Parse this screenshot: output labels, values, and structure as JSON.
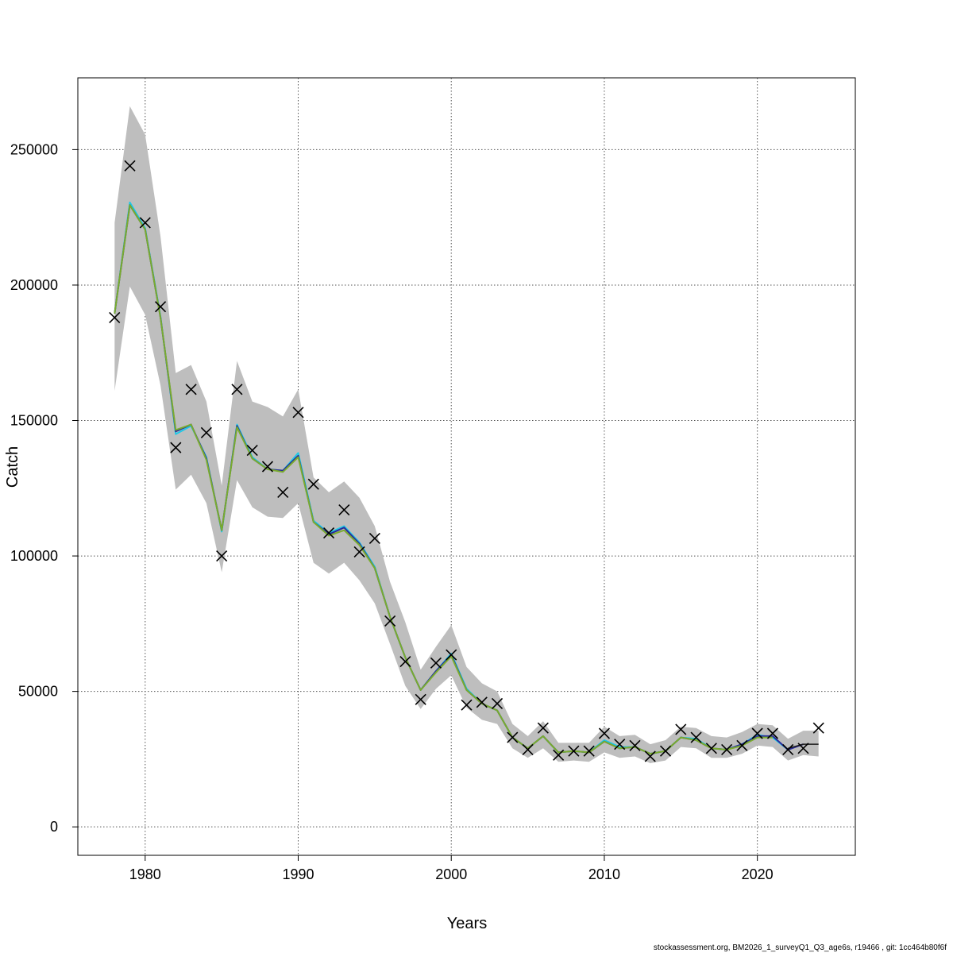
{
  "chart_data": {
    "type": "line",
    "title": "",
    "xlabel": "Years",
    "ylabel": "Catch",
    "xlim": [
      1975.6,
      2026.4
    ],
    "ylim": [
      -10500,
      276500
    ],
    "xticks": [
      1980,
      1990,
      2000,
      2010,
      2020
    ],
    "yticks": [
      0,
      50000,
      100000,
      150000,
      200000,
      250000
    ],
    "grid": true,
    "legend": "none",
    "footer": "stockassessment.org, BM2026_1_surveyQ1_Q3_age6s, r19466 , git: 1cc464b80f6f",
    "colors": {
      "band": "#bebebe",
      "fit_green": "#7aab2e",
      "fit_cyan": "#1ec8e6",
      "fit_blue": "#2a2a9a",
      "fit_dark": "#1a1a1a",
      "observed": "#000000",
      "grid": "#555555"
    },
    "series": [
      {
        "kind": "band",
        "x": [
          1978,
          1979,
          1980,
          1981,
          1982,
          1983,
          1984,
          1985,
          1986,
          1987,
          1988,
          1989,
          1990,
          1991,
          1992,
          1993,
          1994,
          1995,
          1996,
          1997,
          1998,
          1999,
          2000,
          2001,
          2002,
          2003,
          2004,
          2005,
          2006,
          2007,
          2008,
          2009,
          2010,
          2011,
          2012,
          2013,
          2014,
          2015,
          2016,
          2017,
          2018,
          2019,
          2020,
          2021,
          2022,
          2023,
          2024
        ],
        "lower": [
          161000,
          199500,
          189000,
          163000,
          124500,
          130000,
          119500,
          94000,
          128000,
          118000,
          114500,
          114000,
          119500,
          97500,
          93500,
          97500,
          91000,
          82500,
          67500,
          52000,
          43500,
          51000,
          56000,
          44000,
          39500,
          38000,
          29000,
          25500,
          29000,
          24000,
          24500,
          24000,
          27500,
          25500,
          26000,
          23500,
          24500,
          29500,
          29000,
          25500,
          25500,
          27000,
          30000,
          29500,
          24500,
          26500,
          26000
        ],
        "upper": [
          223000,
          266000,
          255500,
          218000,
          167500,
          170500,
          157000,
          126000,
          172000,
          157000,
          155000,
          151500,
          161500,
          129000,
          123500,
          127500,
          121500,
          111000,
          90500,
          75500,
          58000,
          66500,
          74500,
          59000,
          53000,
          50000,
          38000,
          33500,
          39000,
          31000,
          31000,
          31000,
          37000,
          33500,
          34000,
          30500,
          32000,
          37000,
          36500,
          33500,
          33000,
          35000,
          38000,
          37500,
          32500,
          35500,
          35500
        ]
      },
      {
        "kind": "line",
        "color_key": "fit_cyan",
        "x": [
          1978,
          1979,
          1980,
          1981,
          1982,
          1983,
          1984,
          1985,
          1986,
          1987,
          1988,
          1989,
          1990,
          1991,
          1992,
          1993,
          1994,
          1995,
          1996,
          1997,
          1998,
          1999,
          2000,
          2001,
          2002,
          2003,
          2004,
          2005,
          2006,
          2007,
          2008,
          2009,
          2010,
          2011,
          2012,
          2013,
          2014,
          2015,
          2016,
          2017,
          2018,
          2019,
          2020,
          2021,
          2022
        ],
        "y": [
          189500,
          230500,
          221000,
          188500,
          145000,
          148000,
          136500,
          109000,
          148500,
          136500,
          132000,
          131500,
          138000,
          113000,
          108500,
          111000,
          105000,
          96000,
          77500,
          62500,
          50500,
          57500,
          64000,
          51000,
          45500,
          43000,
          33000,
          29000,
          33500,
          27500,
          28000,
          27500,
          32000,
          29500,
          29500,
          27000,
          28000,
          33000,
          32500,
          29000,
          28500,
          30500,
          34000,
          33000,
          28500
        ]
      },
      {
        "kind": "line",
        "color_key": "fit_blue",
        "x": [
          1978,
          1979,
          1980,
          1981,
          1982,
          1983,
          1984,
          1985,
          1986,
          1987,
          1988,
          1989,
          1990,
          1991,
          1992,
          1993,
          1994,
          1995,
          1996,
          1997,
          1998,
          1999,
          2000,
          2001,
          2002,
          2003,
          2004,
          2005,
          2006,
          2007,
          2008,
          2009,
          2010,
          2011,
          2012,
          2013,
          2014,
          2015,
          2016,
          2017,
          2018,
          2019,
          2020,
          2021,
          2022,
          2023
        ],
        "y": [
          189500,
          229500,
          220500,
          188000,
          146000,
          148500,
          136000,
          109500,
          148000,
          136000,
          132000,
          131500,
          137000,
          112500,
          108000,
          110500,
          104500,
          95500,
          77500,
          62500,
          50500,
          57500,
          63500,
          50500,
          45500,
          43000,
          33000,
          29000,
          33500,
          27500,
          28000,
          27500,
          31500,
          29000,
          29500,
          27000,
          28000,
          33000,
          32000,
          29000,
          28500,
          30500,
          33500,
          33500,
          28500,
          30500
        ]
      },
      {
        "kind": "line",
        "color_key": "fit_dark",
        "x": [
          2022,
          2023,
          2024
        ],
        "y": [
          29000,
          30500,
          30500
        ]
      },
      {
        "kind": "line",
        "color_key": "fit_green",
        "x": [
          1978,
          1979,
          1980,
          1981,
          1982,
          1983,
          1984,
          1985,
          1986,
          1987,
          1988,
          1989,
          1990,
          1991,
          1992,
          1993,
          1994,
          1995,
          1996,
          1997,
          1998,
          1999,
          2000,
          2001,
          2002,
          2003,
          2004,
          2005,
          2006,
          2007,
          2008,
          2009,
          2010,
          2011,
          2012,
          2013,
          2014,
          2015,
          2016,
          2017,
          2018,
          2019,
          2020,
          2021
        ],
        "y": [
          189500,
          229500,
          220500,
          188000,
          146500,
          148500,
          135500,
          109500,
          147500,
          136000,
          132000,
          131000,
          136500,
          112500,
          107500,
          109500,
          104000,
          95500,
          77500,
          62500,
          50500,
          57000,
          63000,
          50500,
          45500,
          43000,
          33000,
          29000,
          33500,
          27500,
          28000,
          27500,
          31500,
          29000,
          29500,
          27000,
          28000,
          33000,
          32000,
          29000,
          28500,
          30000,
          33000,
          33000
        ]
      },
      {
        "kind": "points",
        "marker": "x",
        "x": [
          1978,
          1979,
          1980,
          1981,
          1982,
          1983,
          1984,
          1985,
          1986,
          1987,
          1988,
          1989,
          1990,
          1991,
          1992,
          1993,
          1994,
          1995,
          1996,
          1997,
          1998,
          1999,
          2000,
          2001,
          2002,
          2003,
          2004,
          2005,
          2006,
          2007,
          2008,
          2009,
          2010,
          2011,
          2012,
          2013,
          2014,
          2015,
          2016,
          2017,
          2018,
          2019,
          2020,
          2021,
          2022,
          2023,
          2024
        ],
        "y": [
          188000,
          244000,
          223000,
          192000,
          140000,
          161500,
          145500,
          100000,
          161500,
          139000,
          133000,
          123500,
          153000,
          126500,
          108500,
          117000,
          101500,
          106500,
          76000,
          61000,
          47000,
          60500,
          63500,
          45000,
          46000,
          45500,
          33000,
          28500,
          36500,
          26500,
          28000,
          28000,
          34500,
          30500,
          30000,
          26000,
          28000,
          36000,
          33000,
          29000,
          28500,
          30000,
          34500,
          34500,
          28500,
          29000,
          36500
        ]
      }
    ]
  }
}
